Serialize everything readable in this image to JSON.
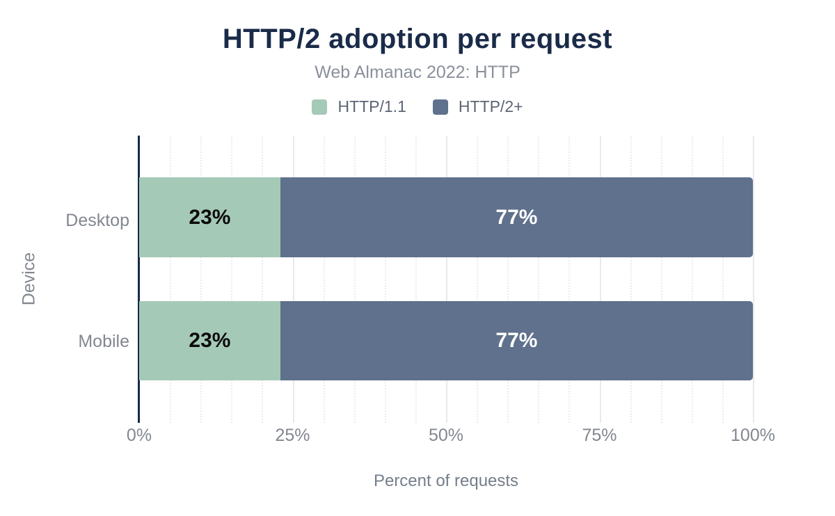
{
  "chart": {
    "title": "HTTP/2 adoption per request",
    "subtitle": "Web Almanac 2022: HTTP"
  },
  "chart_data": {
    "type": "bar",
    "orientation": "horizontal",
    "stacked": true,
    "title": "HTTP/2 adoption per request",
    "subtitle": "Web Almanac 2022: HTTP",
    "xlabel": "Percent of requests",
    "ylabel": "Device",
    "categories": [
      "Desktop",
      "Mobile"
    ],
    "series": [
      {
        "name": "HTTP/1.1",
        "color": "#a5c9b7",
        "values": [
          23,
          23
        ]
      },
      {
        "name": "HTTP/2+",
        "color": "#5f718c",
        "values": [
          77,
          77
        ]
      }
    ],
    "bar_labels": [
      [
        "23%",
        "77%"
      ],
      [
        "23%",
        "77%"
      ]
    ],
    "x_ticks": [
      "0%",
      "25%",
      "50%",
      "75%",
      "100%"
    ],
    "x_tick_positions": [
      0,
      25,
      50,
      75,
      100
    ],
    "xlim": [
      0,
      100
    ],
    "minor_grid_step": 5,
    "legend_position": "top",
    "legend": [
      "HTTP/1.1",
      "HTTP/2+"
    ]
  },
  "colors": {
    "title": "#1a2b49",
    "subtitle": "#8a909b",
    "axis_line": "#16294a",
    "series_http11": "#a5c9b7",
    "series_http2plus": "#5f718c",
    "label_on_green": "#0b0b0c",
    "label_on_slate": "#ffffff",
    "grid_major": "#e9e9ed",
    "grid_minor": "#ececf0",
    "tick_text": "#82878f"
  }
}
